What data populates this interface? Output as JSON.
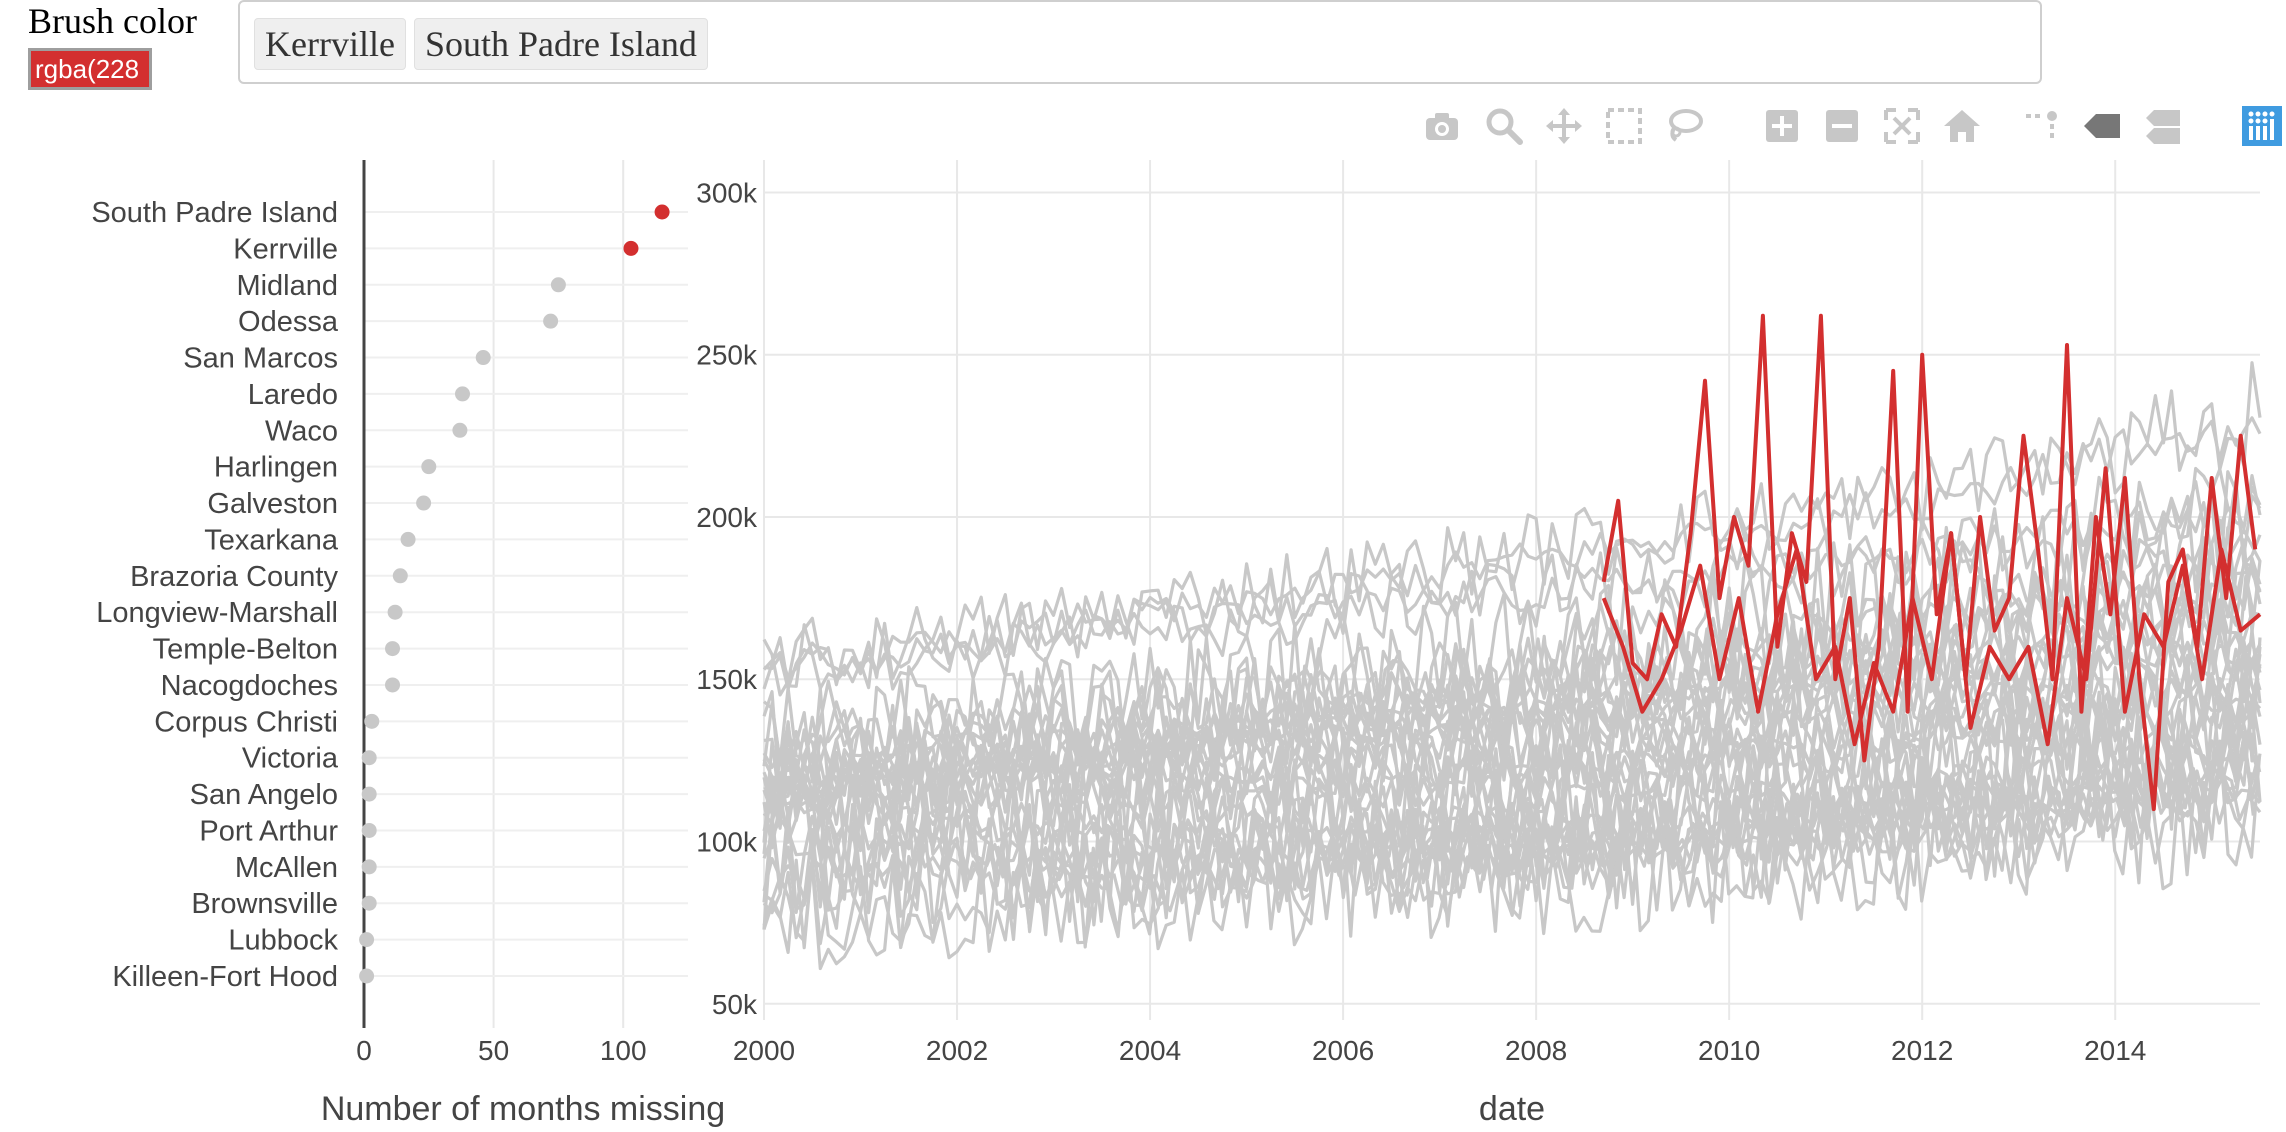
{
  "controls": {
    "brush_label": "Brush color",
    "brush_value": "rgba(228",
    "selected_tags": [
      "Kerrville",
      "South Padre Island"
    ]
  },
  "modebar": {
    "icons": [
      "camera-icon",
      "zoom-icon",
      "pan-icon",
      "box-select-icon",
      "lasso-icon",
      "zoom-in-icon",
      "zoom-out-icon",
      "autoscale-icon",
      "reset-axes-icon",
      "spike-lines-icon",
      "hover-closest-icon",
      "hover-compare-icon",
      "plotly-logo-icon"
    ]
  },
  "colors": {
    "highlight": "#d32f2f",
    "muted": "#c8c8c8",
    "grid": "#e8e8e8",
    "text": "#444444",
    "modebar_icon": "#c7c7c7",
    "logo": "#3f9be0"
  },
  "chart_data": [
    {
      "type": "scatter",
      "xlabel": "Number of months missing",
      "ylabel": "",
      "xlim": [
        0,
        125
      ],
      "x_ticks": [
        0,
        50,
        100
      ],
      "grid": true,
      "categories": [
        "South Padre Island",
        "Kerrville",
        "Midland",
        "Odessa",
        "San Marcos",
        "Laredo",
        "Waco",
        "Harlingen",
        "Galveston",
        "Texarkana",
        "Brazoria County",
        "Longview-Marshall",
        "Temple-Belton",
        "Nacogdoches",
        "Corpus Christi",
        "Victoria",
        "San Angelo",
        "Port Arthur",
        "McAllen",
        "Brownsville",
        "Lubbock",
        "Killeen-Fort Hood"
      ],
      "values": [
        115,
        103,
        75,
        72,
        46,
        38,
        37,
        25,
        23,
        17,
        14,
        12,
        11,
        11,
        3,
        2,
        2,
        2,
        2,
        2,
        1,
        1
      ],
      "highlighted": [
        "South Padre Island",
        "Kerrville"
      ]
    },
    {
      "type": "line",
      "xlabel": "date",
      "ylabel": "",
      "xlim": [
        2000,
        2015.5
      ],
      "ylim": [
        45000,
        310000
      ],
      "x_ticks": [
        "2000",
        "2002",
        "2004",
        "2006",
        "2008",
        "2010",
        "2012",
        "2014"
      ],
      "y_ticks": [
        "50k",
        "100k",
        "150k",
        "200k",
        "250k",
        "300k"
      ],
      "y_tick_values": [
        50000,
        100000,
        150000,
        200000,
        250000,
        300000
      ],
      "grid": true,
      "series": [
        {
          "highlighted": true,
          "x": [
            2008.7,
            2008.85,
            2009.0,
            2009.15,
            2009.3,
            2009.45,
            2009.6,
            2009.75,
            2009.9,
            2010.05,
            2010.2,
            2010.35,
            2010.5,
            2010.65,
            2010.8,
            2010.95,
            2011.1,
            2011.25,
            2011.4,
            2011.55,
            2011.7,
            2011.85,
            2012.0,
            2012.15,
            2012.3,
            2012.45,
            2012.6,
            2012.75,
            2012.9,
            2013.05,
            2013.2,
            2013.35,
            2013.5,
            2013.65,
            2013.8,
            2013.95,
            2014.1,
            2014.25,
            2014.4,
            2014.55,
            2014.7,
            2014.85,
            2015.0,
            2015.15,
            2015.3,
            2015.45
          ],
          "y": [
            180000,
            205000,
            155000,
            150000,
            170000,
            160000,
            195000,
            242000,
            175000,
            200000,
            185000,
            262000,
            160000,
            195000,
            180000,
            262000,
            150000,
            175000,
            125000,
            160000,
            245000,
            140000,
            250000,
            170000,
            195000,
            150000,
            200000,
            165000,
            175000,
            225000,
            190000,
            150000,
            253000,
            140000,
            200000,
            170000,
            212000,
            150000,
            110000,
            180000,
            190000,
            160000,
            212000,
            175000,
            225000,
            190000
          ]
        },
        {
          "highlighted": true,
          "x": [
            2008.7,
            2008.9,
            2009.1,
            2009.3,
            2009.5,
            2009.7,
            2009.9,
            2010.1,
            2010.3,
            2010.5,
            2010.7,
            2010.9,
            2011.1,
            2011.3,
            2011.5,
            2011.7,
            2011.9,
            2012.1,
            2012.3,
            2012.5,
            2012.7,
            2012.9,
            2013.1,
            2013.3,
            2013.5,
            2013.7,
            2013.9,
            2014.1,
            2014.3,
            2014.5,
            2014.7,
            2014.9,
            2015.1,
            2015.3,
            2015.5
          ],
          "y": [
            175000,
            160000,
            140000,
            150000,
            165000,
            185000,
            150000,
            175000,
            140000,
            170000,
            190000,
            150000,
            160000,
            130000,
            155000,
            140000,
            175000,
            150000,
            195000,
            135000,
            160000,
            150000,
            160000,
            130000,
            175000,
            150000,
            215000,
            140000,
            170000,
            160000,
            185000,
            150000,
            190000,
            165000,
            170000
          ]
        }
      ]
    }
  ],
  "axis_titles": {
    "left_x": "Number of months missing",
    "right_x": "date"
  }
}
